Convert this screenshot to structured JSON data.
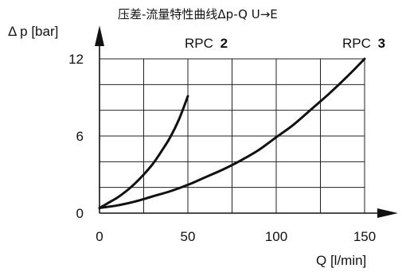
{
  "chart_data": {
    "type": "line",
    "title": "压差-流量特性曲线Δp-Q    U→E",
    "xlabel": "Q [l/min]",
    "ylabel": "Δ p [bar]",
    "xlim": [
      0,
      150
    ],
    "ylim": [
      0,
      12
    ],
    "x_ticks": [
      "0",
      "50",
      "100",
      "150"
    ],
    "y_ticks": [
      "0",
      "6",
      "12"
    ],
    "grid": true,
    "series": [
      {
        "name_prefix": "RPC",
        "name_number": "2",
        "points": [
          [
            0,
            0.4
          ],
          [
            5,
            0.8
          ],
          [
            10,
            1.2
          ],
          [
            15,
            1.7
          ],
          [
            20,
            2.3
          ],
          [
            25,
            3.0
          ],
          [
            30,
            3.8
          ],
          [
            35,
            4.8
          ],
          [
            40,
            5.9
          ],
          [
            45,
            7.3
          ],
          [
            50,
            9.1
          ]
        ]
      },
      {
        "name_prefix": "RPC",
        "name_number": "3",
        "points": [
          [
            0,
            0.4
          ],
          [
            10,
            0.6
          ],
          [
            20,
            0.9
          ],
          [
            30,
            1.3
          ],
          [
            40,
            1.7
          ],
          [
            50,
            2.2
          ],
          [
            60,
            2.8
          ],
          [
            70,
            3.4
          ],
          [
            80,
            4.1
          ],
          [
            90,
            4.9
          ],
          [
            100,
            5.9
          ],
          [
            110,
            6.9
          ],
          [
            120,
            8.1
          ],
          [
            130,
            9.3
          ],
          [
            140,
            10.6
          ],
          [
            150,
            12.0
          ]
        ]
      }
    ]
  }
}
